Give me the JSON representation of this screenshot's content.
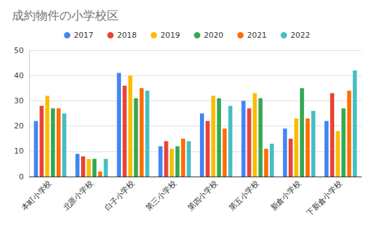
{
  "chart_data": {
    "type": "bar",
    "title": "成約物件の小学校区",
    "categories": [
      "本町小学校",
      "北原小学校",
      "白子小学校",
      "第三小学校",
      "第四小学校",
      "第五小学校",
      "新倉小学校",
      "下新倉小学校"
    ],
    "series": [
      {
        "name": "2017",
        "color": "#4285f4",
        "values": [
          22,
          9,
          41,
          12,
          25,
          30,
          19,
          22
        ]
      },
      {
        "name": "2018",
        "color": "#ea4335",
        "values": [
          28,
          8,
          36,
          14,
          22,
          27,
          15,
          33
        ]
      },
      {
        "name": "2019",
        "color": "#fbbc04",
        "values": [
          32,
          7,
          40,
          11,
          32,
          33,
          23,
          18
        ]
      },
      {
        "name": "2020",
        "color": "#34a853",
        "values": [
          27,
          7,
          31,
          12,
          31,
          31,
          35,
          27
        ]
      },
      {
        "name": "2021",
        "color": "#ff6d01",
        "values": [
          27,
          2,
          35,
          15,
          19,
          11,
          23,
          34
        ]
      },
      {
        "name": "2022",
        "color": "#46bdc6",
        "values": [
          25,
          7,
          34,
          14,
          28,
          13,
          26,
          42
        ]
      }
    ],
    "ylim": [
      0,
      50
    ],
    "yticks": [
      0,
      10,
      20,
      30,
      40,
      50
    ],
    "grid": true,
    "legend": "top"
  }
}
